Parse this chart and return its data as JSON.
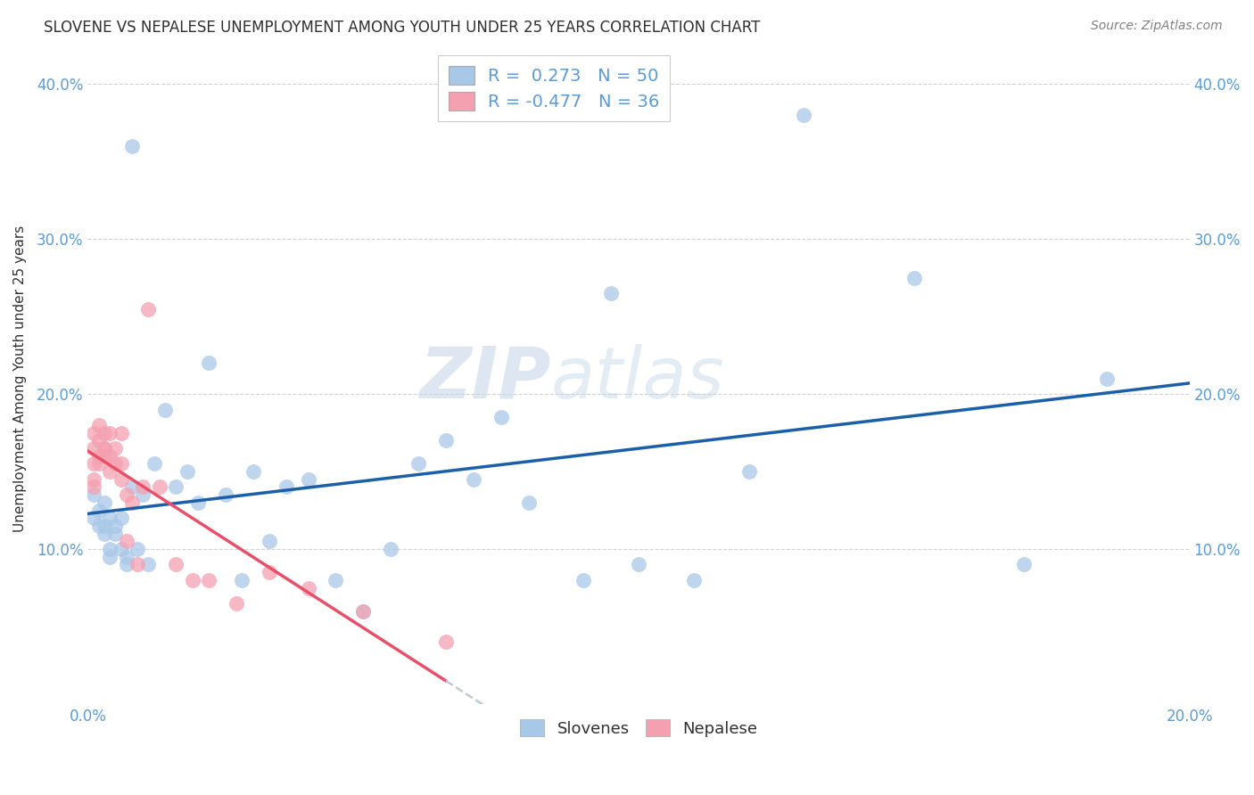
{
  "title": "SLOVENE VS NEPALESE UNEMPLOYMENT AMONG YOUTH UNDER 25 YEARS CORRELATION CHART",
  "source": "Source: ZipAtlas.com",
  "xlabel": "",
  "ylabel": "Unemployment Among Youth under 25 years",
  "xlim": [
    0.0,
    0.2
  ],
  "ylim": [
    0.0,
    0.42
  ],
  "xtick_labels_show": [
    "0.0%",
    "20.0%"
  ],
  "xtick_vals_show": [
    0.0,
    0.2
  ],
  "ytick_labels_show": [
    "10.0%",
    "20.0%",
    "30.0%",
    "40.0%"
  ],
  "ytick_vals_show": [
    0.1,
    0.2,
    0.3,
    0.4
  ],
  "slovene_color": "#a8c8e8",
  "nepalese_color": "#f4a0b0",
  "slovene_line_color": "#1a5fa8",
  "nepalese_line_color": "#e8506a",
  "nepalese_line_dashed_color": "#c0c8d0",
  "watermark_zip": "ZIP",
  "watermark_atlas": "atlas",
  "legend_slovene": "R =  0.273   N = 50",
  "legend_nepalese": "R = -0.477   N = 36",
  "slovene_x": [
    0.001,
    0.001,
    0.002,
    0.002,
    0.003,
    0.003,
    0.003,
    0.004,
    0.004,
    0.004,
    0.005,
    0.005,
    0.006,
    0.006,
    0.007,
    0.007,
    0.008,
    0.008,
    0.009,
    0.01,
    0.011,
    0.012,
    0.014,
    0.016,
    0.018,
    0.02,
    0.022,
    0.025,
    0.028,
    0.03,
    0.033,
    0.036,
    0.04,
    0.045,
    0.05,
    0.055,
    0.06,
    0.065,
    0.07,
    0.075,
    0.08,
    0.09,
    0.095,
    0.1,
    0.11,
    0.12,
    0.13,
    0.15,
    0.17,
    0.185
  ],
  "slovene_y": [
    0.135,
    0.12,
    0.115,
    0.125,
    0.13,
    0.11,
    0.115,
    0.1,
    0.12,
    0.095,
    0.11,
    0.115,
    0.1,
    0.12,
    0.09,
    0.095,
    0.14,
    0.36,
    0.1,
    0.135,
    0.09,
    0.155,
    0.19,
    0.14,
    0.15,
    0.13,
    0.22,
    0.135,
    0.08,
    0.15,
    0.105,
    0.14,
    0.145,
    0.08,
    0.06,
    0.1,
    0.155,
    0.17,
    0.145,
    0.185,
    0.13,
    0.08,
    0.265,
    0.09,
    0.08,
    0.15,
    0.38,
    0.275,
    0.09,
    0.21
  ],
  "nepalese_x": [
    0.001,
    0.001,
    0.001,
    0.001,
    0.001,
    0.002,
    0.002,
    0.002,
    0.002,
    0.003,
    0.003,
    0.003,
    0.003,
    0.004,
    0.004,
    0.004,
    0.005,
    0.005,
    0.006,
    0.006,
    0.006,
    0.007,
    0.007,
    0.008,
    0.009,
    0.01,
    0.011,
    0.013,
    0.016,
    0.019,
    0.022,
    0.027,
    0.033,
    0.04,
    0.05,
    0.065
  ],
  "nepalese_y": [
    0.155,
    0.145,
    0.14,
    0.175,
    0.165,
    0.18,
    0.16,
    0.17,
    0.155,
    0.175,
    0.165,
    0.16,
    0.165,
    0.175,
    0.16,
    0.15,
    0.155,
    0.165,
    0.155,
    0.145,
    0.175,
    0.135,
    0.105,
    0.13,
    0.09,
    0.14,
    0.255,
    0.14,
    0.09,
    0.08,
    0.08,
    0.065,
    0.085,
    0.075,
    0.06,
    0.04
  ]
}
